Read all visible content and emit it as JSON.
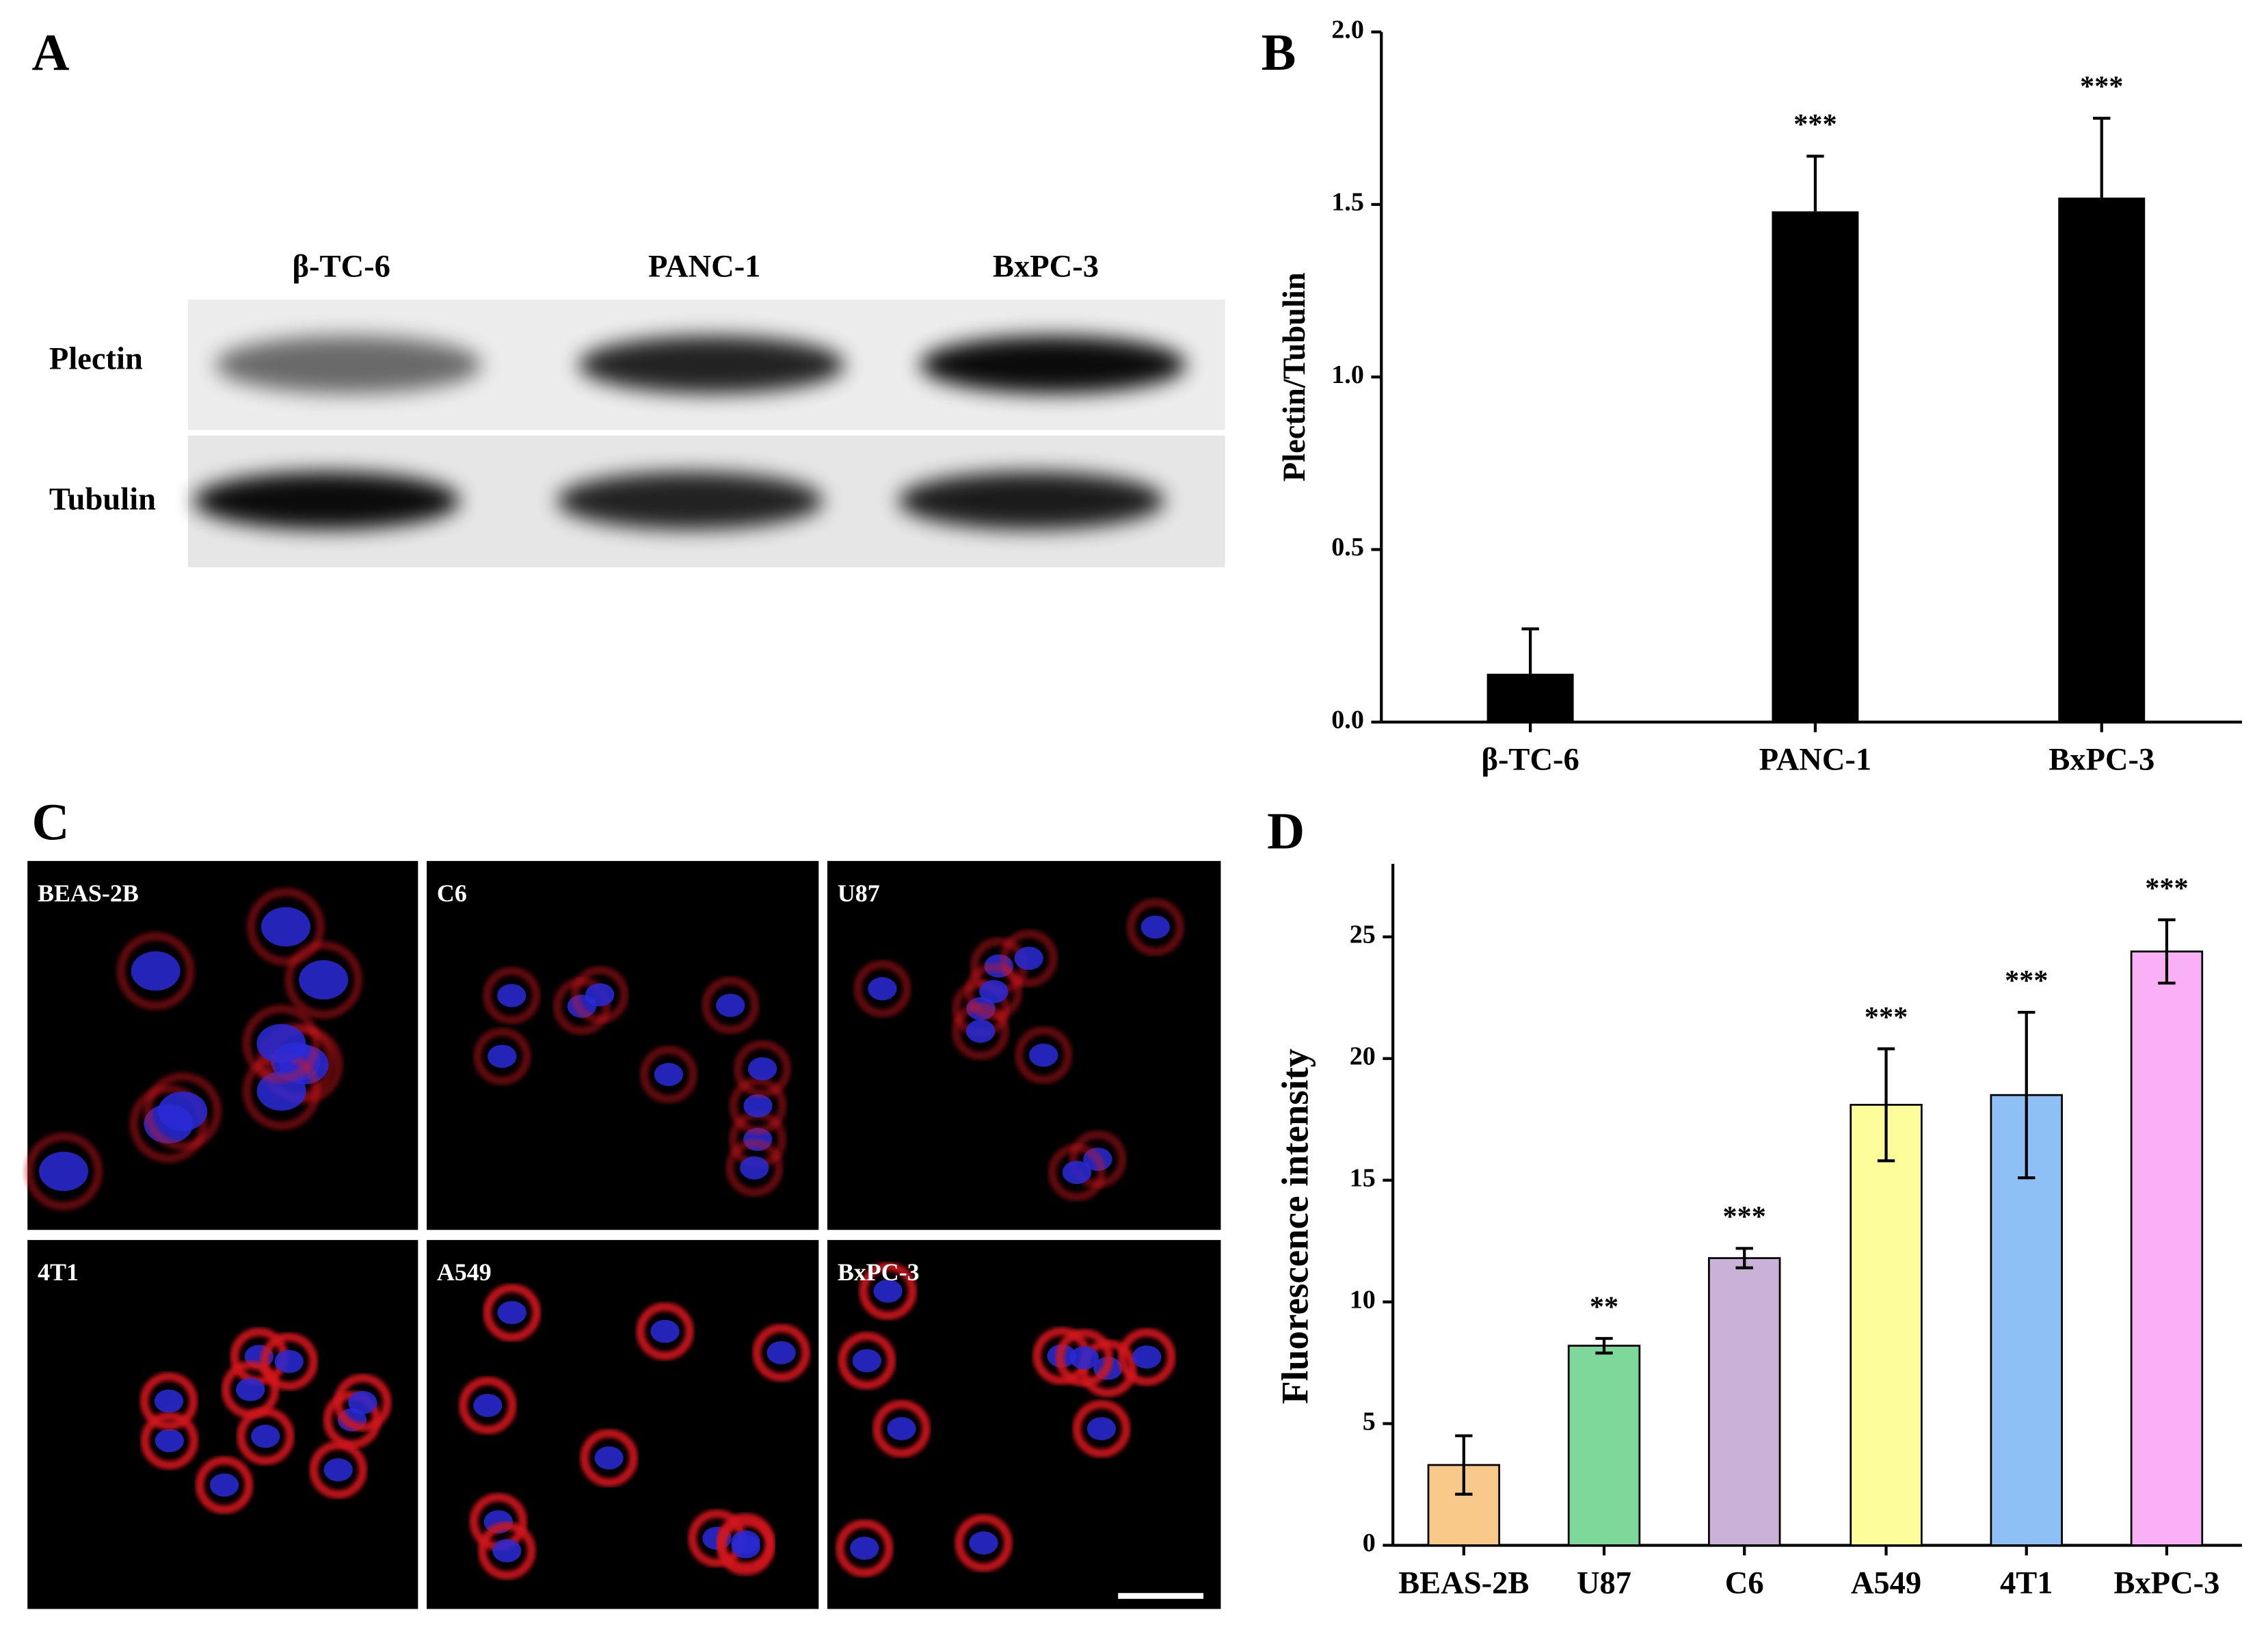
{
  "panel_labels": [
    "A",
    "B",
    "C",
    "D"
  ],
  "western_blot": {
    "lanes": [
      "β-TC-6",
      "PANC-1",
      "BxPC-3"
    ],
    "proteins": [
      "Plectin",
      "Tubulin"
    ]
  },
  "micrographs": {
    "labels": [
      "BEAS-2B",
      "C6",
      "U87",
      "4T1",
      "A549",
      "BxPC-3"
    ]
  },
  "chart_data": [
    {
      "type": "bar",
      "y_label": "Plectin/Tubulin",
      "categories": [
        "β-TC-6",
        "PANC-1",
        "BxPC-3"
      ],
      "values": [
        0.14,
        1.48,
        1.52
      ],
      "errors": [
        0.13,
        0.16,
        0.23
      ],
      "significance": [
        null,
        "***",
        "***"
      ],
      "color": "#000000",
      "outline": false,
      "ylim": [
        0,
        2.0
      ],
      "yticks": [
        {
          "value": 0,
          "label": "0.0"
        },
        {
          "value": 0.5,
          "label": "0.5"
        },
        {
          "value": 1,
          "label": "1.0"
        },
        {
          "value": 1.5,
          "label": "1.5"
        },
        {
          "value": 2,
          "label": "2.0"
        }
      ]
    },
    {
      "type": "bar",
      "y_label": "Fluorescence intensity",
      "categories": [
        "BEAS-2B",
        "U87",
        "C6",
        "A549",
        "4T1",
        "BxPC-3"
      ],
      "values": [
        3.3,
        8.2,
        11.8,
        18.1,
        18.5,
        24.4
      ],
      "errors": [
        1.2,
        0.3,
        0.4,
        2.3,
        3.4,
        1.3
      ],
      "significance": [
        null,
        "**",
        "***",
        "***",
        "***",
        "***"
      ],
      "colors": [
        "#f9c98a",
        "#7dd89a",
        "#c9b1d8",
        "#fdfd9a",
        "#8ec0f5",
        "#f9b0f5"
      ],
      "outline": true,
      "ylim": [
        0,
        28
      ],
      "yticks": [
        0,
        5,
        10,
        15,
        20,
        25
      ]
    }
  ]
}
